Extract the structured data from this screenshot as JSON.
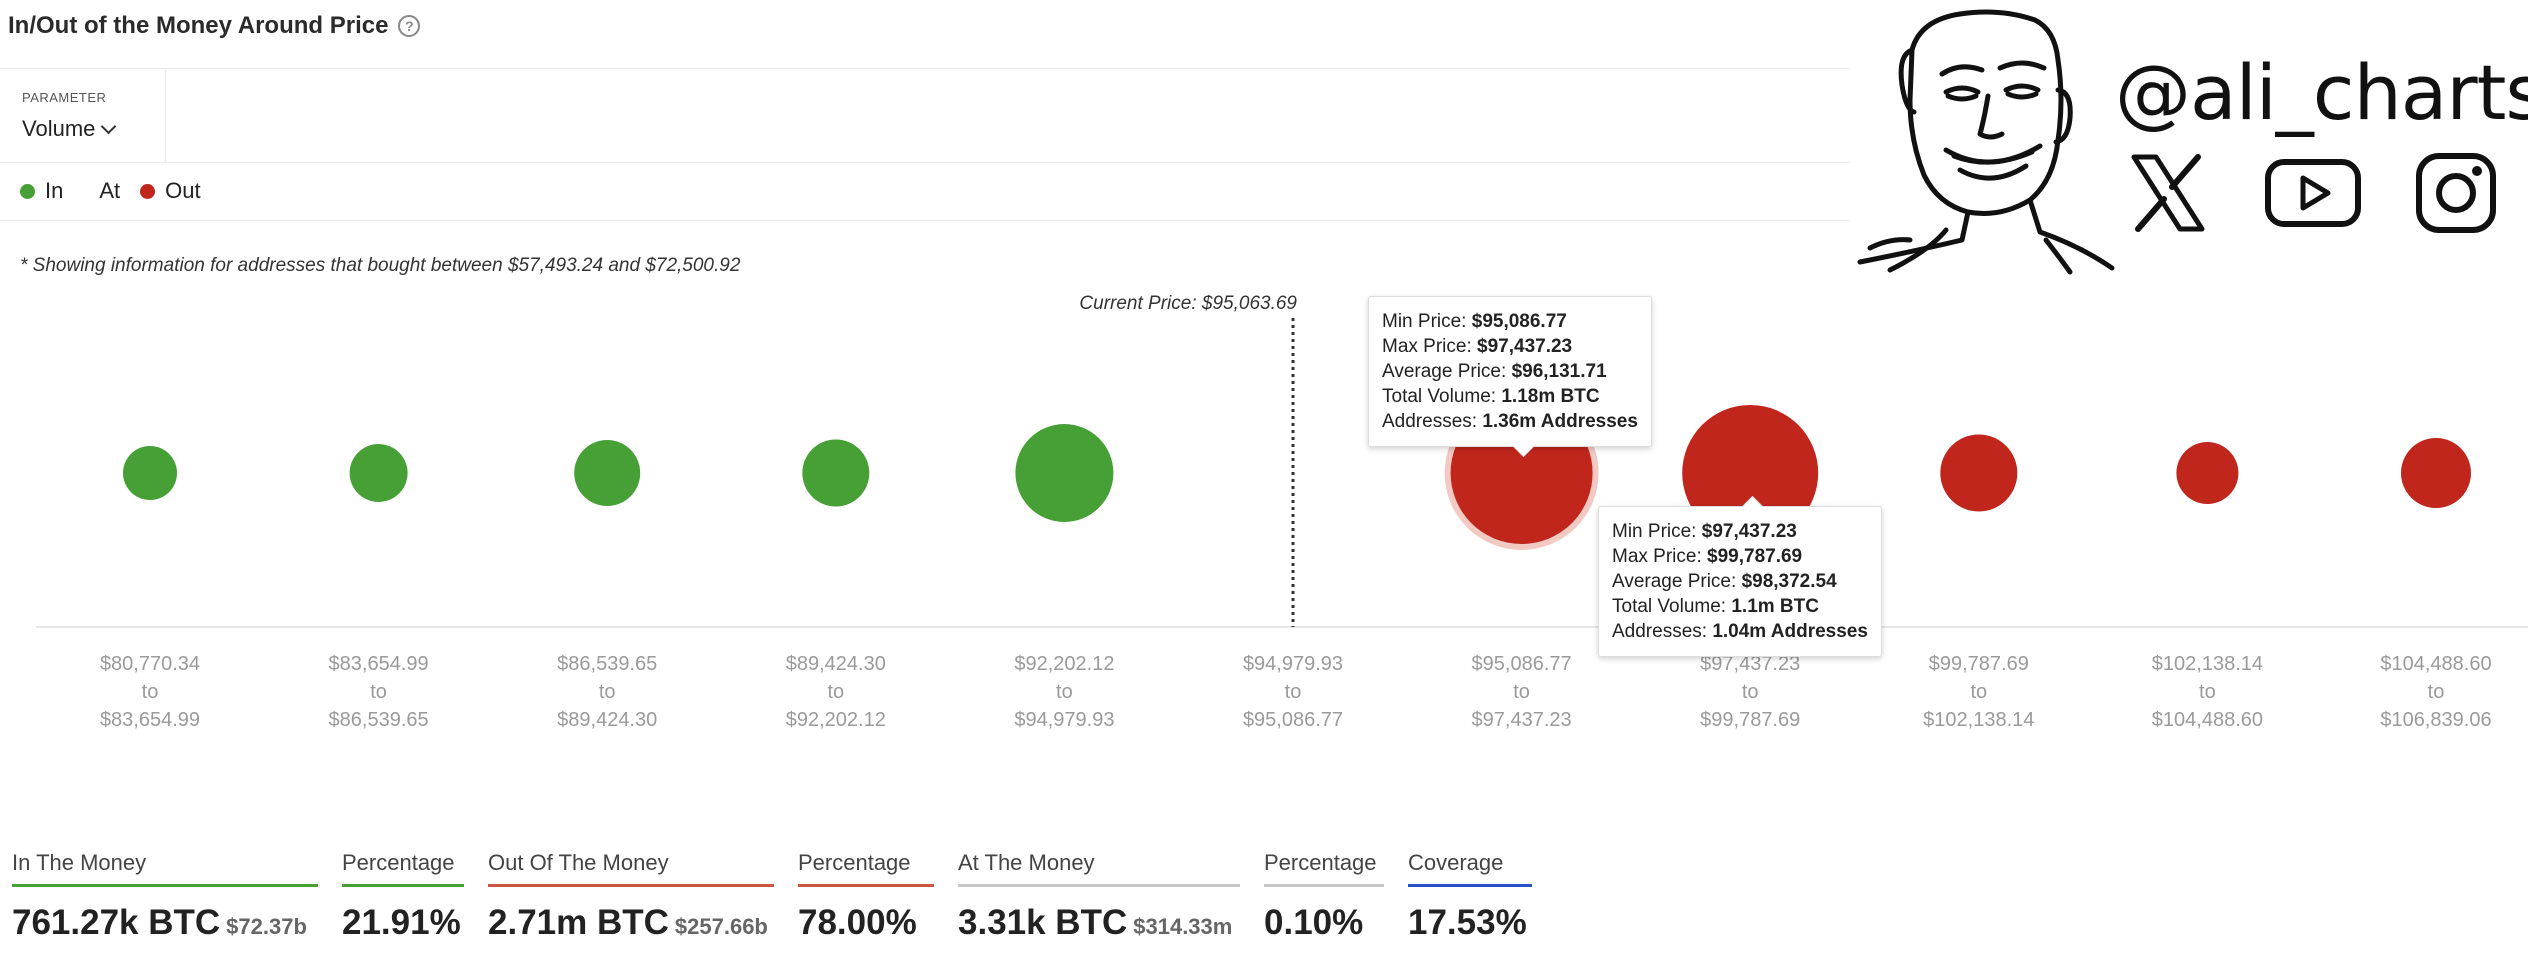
{
  "header": {
    "title": "In/Out of the Money Around Price",
    "help_icon": "?"
  },
  "parameter": {
    "label": "PARAMETER",
    "value": "Volume"
  },
  "legend": {
    "in": "In",
    "at": "At",
    "out": "Out"
  },
  "note": "* Showing information for addresses that bought between $57,493.24 and $72,500.92",
  "colors": {
    "in": "#46a036",
    "out": "#c0261c",
    "at": "#b0b0b0",
    "coverage": "#2a4fc9"
  },
  "chart_data": {
    "type": "scatter",
    "current_price_label": "Current Price: $95,063.69",
    "current_price_index": 5,
    "categories": [
      {
        "from": "$80,770.34",
        "to": "$83,654.99",
        "status": "in",
        "size": 54
      },
      {
        "from": "$83,654.99",
        "to": "$86,539.65",
        "status": "in",
        "size": 58
      },
      {
        "from": "$86,539.65",
        "to": "$89,424.30",
        "status": "in",
        "size": 66
      },
      {
        "from": "$89,424.30",
        "to": "$92,202.12",
        "status": "in",
        "size": 67
      },
      {
        "from": "$92,202.12",
        "to": "$94,979.93",
        "status": "in",
        "size": 98
      },
      {
        "from": "$94,979.93",
        "to": "$95,086.77",
        "status": "at",
        "size": 0
      },
      {
        "from": "$95,086.77",
        "to": "$97,437.23",
        "status": "out",
        "size": 142
      },
      {
        "from": "$97,437.23",
        "to": "$99,787.69",
        "status": "out",
        "size": 136
      },
      {
        "from": "$99,787.69",
        "to": "$102,138.14",
        "status": "out",
        "size": 77
      },
      {
        "from": "$102,138.14",
        "to": "$104,488.60",
        "status": "out",
        "size": 62
      },
      {
        "from": "$104,488.60",
        "to": "$106,839.06",
        "status": "out",
        "size": 70
      }
    ],
    "to_word": "to"
  },
  "tooltips": [
    {
      "min_label": "Min Price: ",
      "min": "$95,086.77",
      "max_label": "Max Price: ",
      "max": "$97,437.23",
      "avg_label": "Average Price: ",
      "avg": "$96,131.71",
      "vol_label": "Total Volume: ",
      "vol": "1.18m BTC",
      "addr_label": "Addresses: ",
      "addr": "1.36m Addresses"
    },
    {
      "min_label": "Min Price: ",
      "min": "$97,437.23",
      "max_label": "Max Price: ",
      "max": "$99,787.69",
      "avg_label": "Average Price: ",
      "avg": "$98,372.54",
      "vol_label": "Total Volume: ",
      "vol": "1.1m BTC",
      "addr_label": "Addresses: ",
      "addr": "1.04m Addresses"
    }
  ],
  "stats": [
    {
      "label": "In The Money",
      "value": "761.27k BTC",
      "sub": "$72.37b",
      "color": "#46a036"
    },
    {
      "label": "Percentage",
      "value": "21.91%",
      "sub": "",
      "color": "#46a036"
    },
    {
      "label": "Out Of The Money",
      "value": "2.71m BTC",
      "sub": "$257.66b",
      "color": "#c9563f"
    },
    {
      "label": "Percentage",
      "value": "78.00%",
      "sub": "",
      "color": "#c9563f"
    },
    {
      "label": "At The Money",
      "value": "3.31k BTC",
      "sub": "$314.33m",
      "color": "#c8c8c8"
    },
    {
      "label": "Percentage",
      "value": "0.10%",
      "sub": "",
      "color": "#c8c8c8"
    },
    {
      "label": "Coverage",
      "value": "17.53%",
      "sub": "",
      "color": "#2a4fc9"
    }
  ],
  "brand": {
    "handle": "@ali_charts",
    "x_icon": "x-icon",
    "youtube_icon": "youtube-icon",
    "instagram_icon": "instagram-icon"
  }
}
